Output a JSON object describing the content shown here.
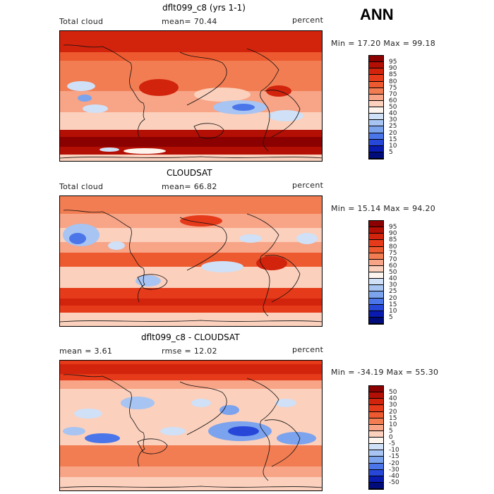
{
  "season": "ANN",
  "panels": [
    {
      "title": "dflt099_c8 (yrs 1-1)",
      "left_label": "Total cloud",
      "center_label": "mean=   70.44",
      "units": "percent",
      "range_text": "Min =   17.20 Max =   99.18",
      "map_name": "model-total-cloud-map",
      "legend": {
        "labels": [
          "95",
          "90",
          "85",
          "80",
          "75",
          "70",
          "60",
          "50",
          "40",
          "30",
          "25",
          "20",
          "15",
          "10",
          "5"
        ],
        "colors": [
          "#8b0000",
          "#b30f05",
          "#d2230d",
          "#e53b1a",
          "#ee5a2f",
          "#f27d52",
          "#f7a487",
          "#fbd0bd",
          "#fdf4ee",
          "#cfe0f7",
          "#a7c4f2",
          "#7ba3ee",
          "#4a76ea",
          "#2647d8",
          "#0a1bb0",
          "#000c7a"
        ]
      }
    },
    {
      "title": "CLOUDSAT",
      "left_label": "Total cloud",
      "center_label": "mean=   66.82",
      "units": "percent",
      "range_text": "Min =   15.14 Max =   94.20",
      "map_name": "cloudsat-total-cloud-map",
      "legend": {
        "labels": [
          "95",
          "90",
          "85",
          "80",
          "75",
          "70",
          "60",
          "50",
          "40",
          "30",
          "25",
          "20",
          "15",
          "10",
          "5"
        ],
        "colors": [
          "#8b0000",
          "#b30f05",
          "#d2230d",
          "#e53b1a",
          "#ee5a2f",
          "#f27d52",
          "#f7a487",
          "#fbd0bd",
          "#fdf4ee",
          "#cfe0f7",
          "#a7c4f2",
          "#7ba3ee",
          "#4a76ea",
          "#2647d8",
          "#0a1bb0",
          "#000c7a"
        ]
      }
    },
    {
      "title": "dflt099_c8 - CLOUDSAT",
      "left_label": "mean =    3.61",
      "center_label": "rmse =   12.02",
      "units": "percent",
      "range_text": "Min = -34.19 Max =   55.30",
      "map_name": "difference-map",
      "legend": {
        "labels": [
          "50",
          "40",
          "30",
          "20",
          "15",
          "10",
          "5",
          "0",
          "-5",
          "-10",
          "-15",
          "-20",
          "-30",
          "-40",
          "-50"
        ],
        "colors": [
          "#8b0000",
          "#b30f05",
          "#d2230d",
          "#e53b1a",
          "#ee5a2f",
          "#f27d52",
          "#f7a487",
          "#fbd0bd",
          "#fdf4ee",
          "#cfe0f7",
          "#a7c4f2",
          "#7ba3ee",
          "#4a76ea",
          "#2647d8",
          "#0a1bb0",
          "#000c7a"
        ]
      }
    }
  ]
}
